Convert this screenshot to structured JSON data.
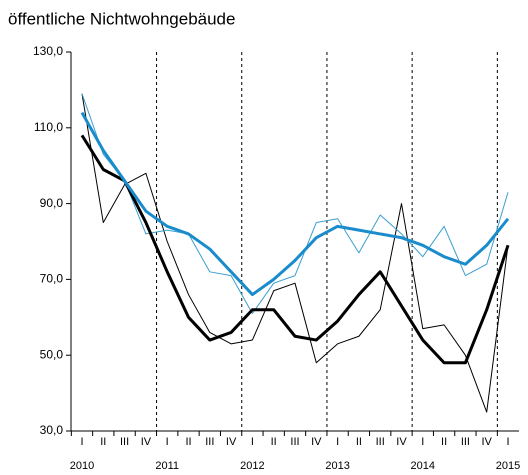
{
  "chart_data": {
    "type": "line",
    "title": "öffentliche Nichtwohngebäude",
    "categories": [
      "I",
      "II",
      "III",
      "IV",
      "I",
      "II",
      "III",
      "IV",
      "I",
      "II",
      "III",
      "IV",
      "I",
      "II",
      "III",
      "IV",
      "I",
      "II",
      "III",
      "IV",
      "I"
    ],
    "x_groups": [
      "2010",
      "2011",
      "2012",
      "2013",
      "2014",
      "2015"
    ],
    "series": [
      {
        "color": "#000000",
        "line_width": 1,
        "values": [
          119,
          85,
          95,
          98,
          80,
          66,
          56,
          53,
          54,
          67,
          69,
          48,
          53,
          55,
          62,
          90,
          57,
          58,
          50,
          35,
          79
        ]
      },
      {
        "color": "#3a9fd0",
        "line_width": 1,
        "values": [
          119,
          103,
          96,
          82,
          83,
          82,
          72,
          71,
          61,
          69,
          71,
          85,
          86,
          77,
          87,
          82,
          76,
          84,
          71,
          74,
          93
        ]
      },
      {
        "color": "#000000",
        "line_width": 3,
        "values": [
          108,
          99,
          96,
          85,
          72,
          60,
          54,
          56,
          62,
          62,
          55,
          54,
          59,
          66,
          72,
          63,
          54,
          48,
          48,
          62,
          79
        ]
      },
      {
        "color": "#1a8ccc",
        "line_width": 3,
        "values": [
          114,
          104,
          96,
          88,
          84,
          82,
          78,
          72,
          66,
          70,
          75,
          81,
          84,
          83,
          82,
          81,
          79,
          76,
          74,
          79,
          86
        ]
      }
    ],
    "ylim": [
      30,
      130
    ],
    "yticks": [
      {
        "value": 30,
        "label": "30,0"
      },
      {
        "value": 50,
        "label": "50,0"
      },
      {
        "value": 70,
        "label": "70,0"
      },
      {
        "value": 90,
        "label": "90,0"
      },
      {
        "value": 110,
        "label": "110,0"
      },
      {
        "value": 130,
        "label": "130,0"
      }
    ]
  }
}
